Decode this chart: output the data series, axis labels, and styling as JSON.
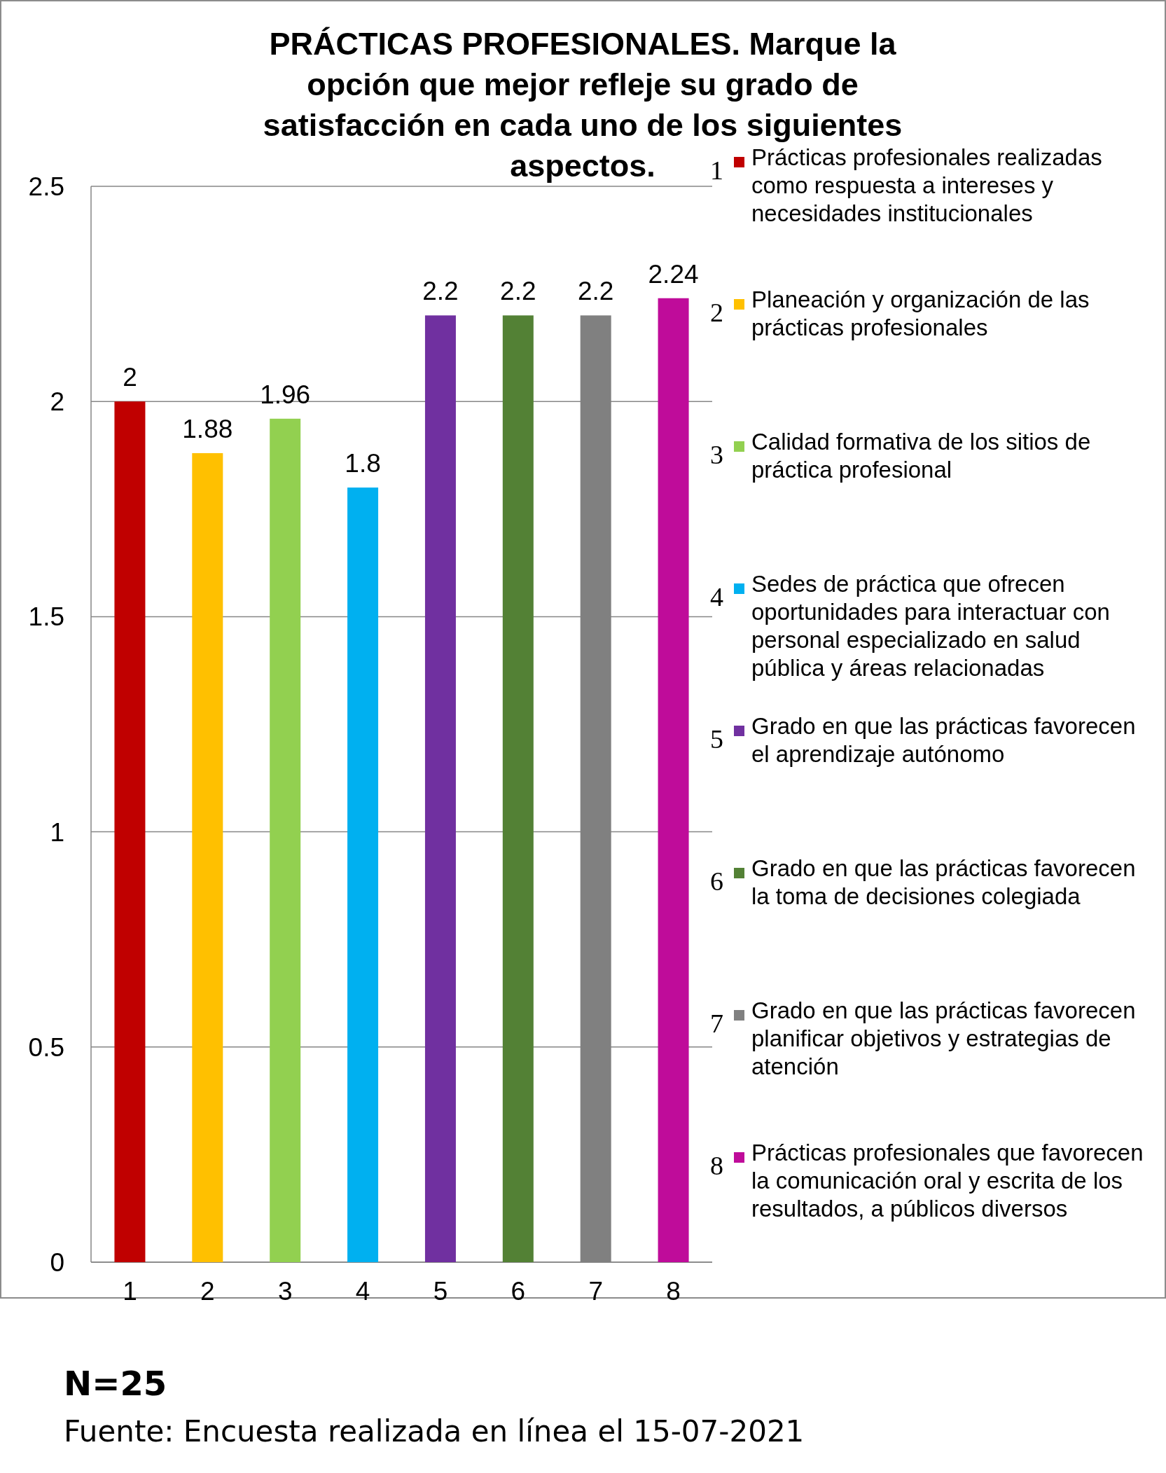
{
  "chart_data": {
    "type": "bar",
    "title": "PRÁCTICAS PROFESIONALES. Marque la opción que mejor refleje su grado de satisfacción en cada uno de los siguientes aspectos.",
    "categories": [
      "1",
      "2",
      "3",
      "4",
      "5",
      "6",
      "7",
      "8"
    ],
    "series": [
      {
        "name": "Prácticas profesionales realizadas como respuesta a intereses y necesidades institucionales",
        "color": "#c00000",
        "values": [
          2,
          null,
          null,
          null,
          null,
          null,
          null,
          null
        ]
      },
      {
        "name": "Planeación y organización de las prácticas profesionales",
        "color": "#ffc000",
        "values": [
          null,
          1.88,
          null,
          null,
          null,
          null,
          null,
          null
        ]
      },
      {
        "name": "Calidad formativa de los sitios de práctica profesional",
        "color": "#92d050",
        "values": [
          null,
          null,
          1.96,
          null,
          null,
          null,
          null,
          null
        ]
      },
      {
        "name": "Sedes de práctica que ofrecen oportunidades para interactuar con personal especializado en salud pública y áreas relacionadas",
        "color": "#00b0f0",
        "values": [
          null,
          null,
          null,
          1.8,
          null,
          null,
          null,
          null
        ]
      },
      {
        "name": "Grado en que las prácticas favorecen el aprendizaje autónomo",
        "color": "#7030a0",
        "values": [
          null,
          null,
          null,
          null,
          2.2,
          null,
          null,
          null
        ]
      },
      {
        "name": "Grado en que las prácticas favorecen la toma de decisiones colegiada",
        "color": "#538135",
        "values": [
          null,
          null,
          null,
          null,
          null,
          2.2,
          null,
          null
        ]
      },
      {
        "name": "Grado en que las prácticas favorecen planificar objetivos y estrategias de atención",
        "color": "#808080",
        "values": [
          null,
          null,
          null,
          null,
          null,
          null,
          2.2,
          null
        ]
      },
      {
        "name": "Prácticas profesionales que favorecen la comunicación oral y escrita de los resultados, a públicos diversos",
        "color": "#bf0c9a",
        "values": [
          null,
          null,
          null,
          null,
          null,
          null,
          null,
          2.24
        ]
      }
    ],
    "ylim": [
      0,
      2.5
    ],
    "yticks": [
      0,
      0.5,
      1,
      1.5,
      2,
      2.5
    ],
    "grid": "y",
    "legend": "right",
    "data_labels": true,
    "annotations": [
      "N=25",
      "Fuente: Encuesta realizada en línea el 15-07-2021"
    ]
  }
}
